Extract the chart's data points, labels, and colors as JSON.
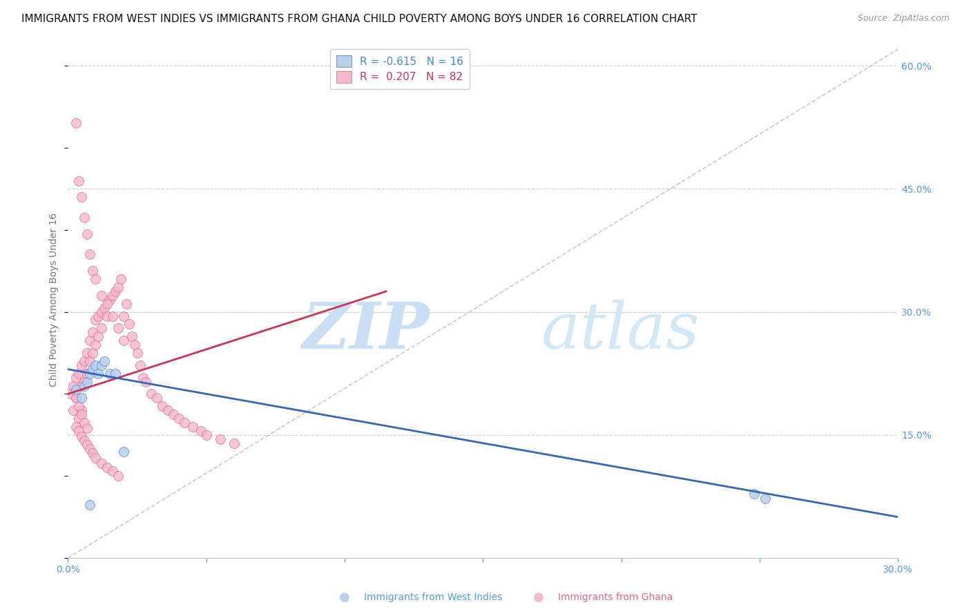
{
  "title": "IMMIGRANTS FROM WEST INDIES VS IMMIGRANTS FROM GHANA CHILD POVERTY AMONG BOYS UNDER 16 CORRELATION CHART",
  "source": "Source: ZipAtlas.com",
  "ylabel": "Child Poverty Among Boys Under 16",
  "watermark_zip": "ZIP",
  "watermark_atlas": "atlas",
  "xlim": [
    0.0,
    0.3
  ],
  "ylim": [
    0.0,
    0.63
  ],
  "xticks": [
    0.0,
    0.05,
    0.1,
    0.15,
    0.2,
    0.25,
    0.3
  ],
  "xticklabels": [
    "0.0%",
    "",
    "",
    "",
    "",
    "",
    "30.0%"
  ],
  "yticks_right": [
    0.15,
    0.3,
    0.45,
    0.6
  ],
  "yticklabels_right": [
    "15.0%",
    "30.0%",
    "45.0%",
    "60.0%"
  ],
  "legend_entries": [
    {
      "label": "R = -0.615   N = 16",
      "color": "#b8d0ec"
    },
    {
      "label": "R =  0.207   N = 82",
      "color": "#f5b8cc"
    }
  ],
  "west_indies": {
    "color": "#b8d0ec",
    "edge_color": "#5588cc",
    "scatter_x": [
      0.003,
      0.005,
      0.006,
      0.007,
      0.008,
      0.009,
      0.01,
      0.011,
      0.012,
      0.013,
      0.015,
      0.017,
      0.02,
      0.248,
      0.252,
      0.008
    ],
    "scatter_y": [
      0.205,
      0.195,
      0.21,
      0.215,
      0.225,
      0.23,
      0.235,
      0.225,
      0.235,
      0.24,
      0.225,
      0.225,
      0.13,
      0.078,
      0.072,
      0.065
    ],
    "trendline_x": [
      0.0,
      0.3
    ],
    "trendline_y": [
      0.23,
      0.05
    ]
  },
  "ghana": {
    "color": "#f5b8cc",
    "edge_color": "#e06080",
    "scatter_x": [
      0.001,
      0.002,
      0.002,
      0.003,
      0.003,
      0.004,
      0.004,
      0.005,
      0.005,
      0.005,
      0.006,
      0.006,
      0.007,
      0.007,
      0.008,
      0.008,
      0.009,
      0.009,
      0.01,
      0.01,
      0.011,
      0.011,
      0.012,
      0.012,
      0.013,
      0.014,
      0.015,
      0.016,
      0.017,
      0.018,
      0.019,
      0.02,
      0.021,
      0.022,
      0.023,
      0.024,
      0.025,
      0.026,
      0.027,
      0.028,
      0.03,
      0.032,
      0.034,
      0.036,
      0.038,
      0.04,
      0.042,
      0.045,
      0.048,
      0.05,
      0.055,
      0.06,
      0.003,
      0.004,
      0.005,
      0.006,
      0.007,
      0.008,
      0.009,
      0.01,
      0.012,
      0.014,
      0.016,
      0.018,
      0.02,
      0.003,
      0.004,
      0.005,
      0.006,
      0.007,
      0.003,
      0.004,
      0.005,
      0.006,
      0.007,
      0.008,
      0.009,
      0.01,
      0.012,
      0.014,
      0.016,
      0.018
    ],
    "scatter_y": [
      0.2,
      0.21,
      0.18,
      0.22,
      0.195,
      0.225,
      0.17,
      0.235,
      0.21,
      0.18,
      0.24,
      0.215,
      0.25,
      0.225,
      0.265,
      0.24,
      0.275,
      0.25,
      0.29,
      0.26,
      0.295,
      0.27,
      0.3,
      0.28,
      0.305,
      0.295,
      0.315,
      0.32,
      0.325,
      0.33,
      0.34,
      0.295,
      0.31,
      0.285,
      0.27,
      0.26,
      0.25,
      0.235,
      0.22,
      0.215,
      0.2,
      0.195,
      0.185,
      0.18,
      0.175,
      0.17,
      0.165,
      0.16,
      0.155,
      0.15,
      0.145,
      0.14,
      0.53,
      0.46,
      0.44,
      0.415,
      0.395,
      0.37,
      0.35,
      0.34,
      0.32,
      0.31,
      0.295,
      0.28,
      0.265,
      0.195,
      0.185,
      0.175,
      0.165,
      0.158,
      0.16,
      0.155,
      0.148,
      0.143,
      0.138,
      0.133,
      0.128,
      0.122,
      0.115,
      0.11,
      0.106,
      0.1
    ],
    "trendline_x": [
      0.0,
      0.115
    ],
    "trendline_y": [
      0.2,
      0.325
    ]
  },
  "dashed_line": {
    "color": "#ddb8c0",
    "x": [
      0.0,
      0.3
    ],
    "y": [
      0.0,
      0.62
    ]
  },
  "background_color": "#ffffff",
  "grid_color": "#ccccdd",
  "title_fontsize": 11,
  "source_fontsize": 9,
  "axis_label_color": "#5599dd",
  "watermark_color": "#ddeeff",
  "marker_size": 100
}
